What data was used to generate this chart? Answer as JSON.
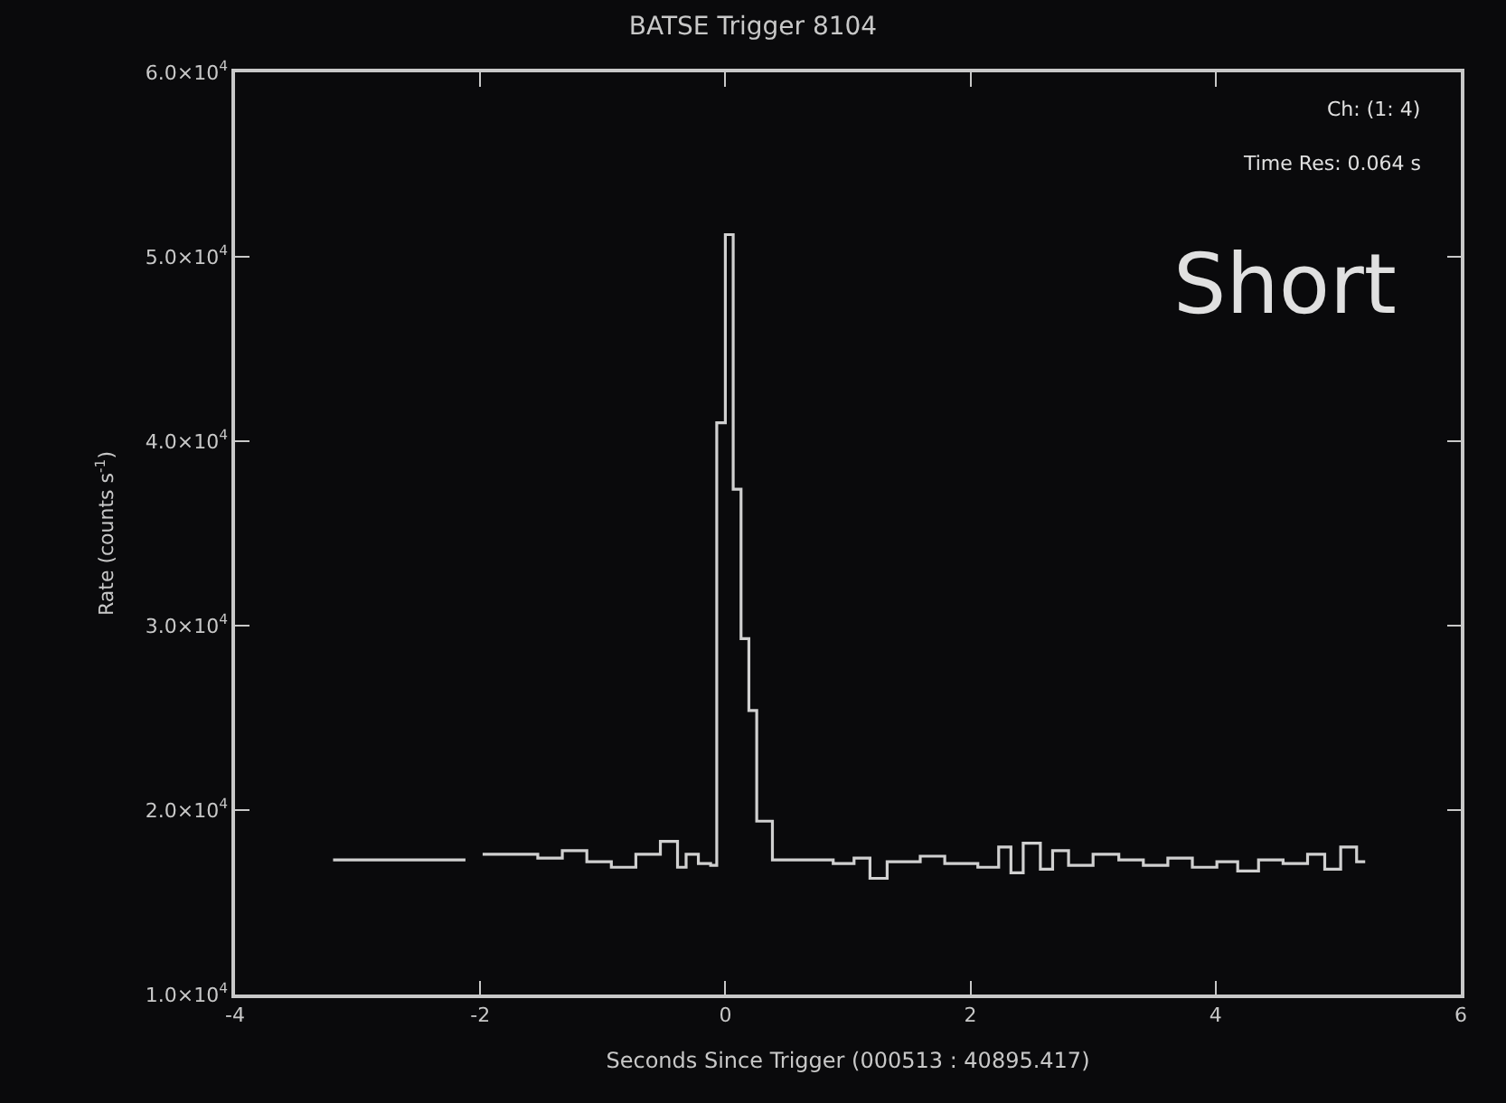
{
  "chart_data": {
    "type": "step",
    "title": "BATSE Trigger 8104",
    "xlabel": "Seconds Since Trigger (000513 : 40895.417)",
    "ylabel": "Rate (counts s$^{-1}$)",
    "x": [
      -3.2,
      -2.12,
      -2.05,
      -1.98,
      -1.8,
      -1.53,
      -1.33,
      -1.13,
      -0.93,
      -0.73,
      -0.53,
      -0.39,
      -0.32,
      -0.22,
      -0.12,
      -0.07,
      0.0,
      0.064,
      0.128,
      0.192,
      0.256,
      0.384,
      0.88,
      1.05,
      1.18,
      1.32,
      1.59,
      1.79,
      2.06,
      2.23,
      2.33,
      2.43,
      2.57,
      2.67,
      2.8,
      3.0,
      3.21,
      3.41,
      3.61,
      3.81,
      4.01,
      4.18,
      4.35,
      4.55,
      4.75,
      4.89,
      5.02,
      5.15,
      5.22
    ],
    "series": [
      {
        "color": "#d0d0d0",
        "values": [
          17300,
          17300,
          null,
          17600,
          17600,
          17400,
          17800,
          17200,
          16900,
          17600,
          18300,
          16900,
          17600,
          17100,
          17000,
          41000,
          51200,
          37400,
          29300,
          25400,
          19400,
          17300,
          17100,
          17400,
          16300,
          17200,
          17500,
          17100,
          16900,
          18000,
          16600,
          18200,
          16800,
          17800,
          17000,
          17600,
          17300,
          17000,
          17400,
          16900,
          17200,
          16700,
          17300,
          17100,
          17600,
          16800,
          18000,
          17200,
          17200
        ]
      }
    ],
    "xlim": [
      -4,
      6
    ],
    "xticks": [
      -4,
      -2,
      0,
      2,
      4,
      6
    ],
    "ylim": [
      10000,
      60000
    ],
    "yticks": [
      {
        "value": 10000,
        "label": "1.0×10$^{4}$"
      },
      {
        "value": 20000,
        "label": "2.0×10$^{4}$"
      },
      {
        "value": 30000,
        "label": "3.0×10$^{4}$"
      },
      {
        "value": 40000,
        "label": "4.0×10$^{4}$"
      },
      {
        "value": 50000,
        "label": "5.0×10$^{4}$"
      },
      {
        "value": 60000,
        "label": "6.0×10$^{4}$"
      }
    ],
    "annotations": [
      "Ch: (1: 4)",
      "Time Res: 0.064 s",
      "Short"
    ]
  }
}
